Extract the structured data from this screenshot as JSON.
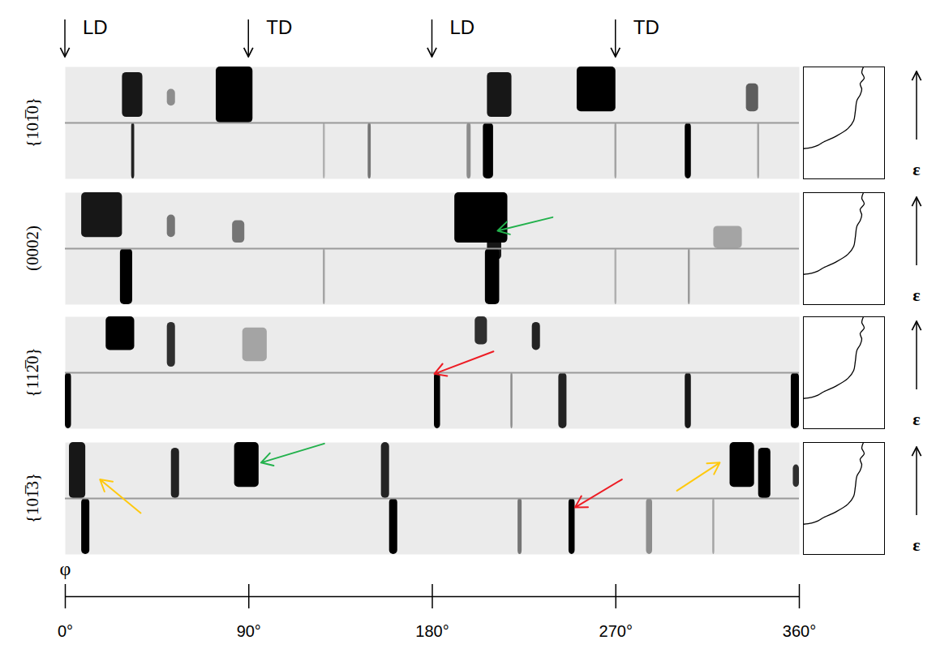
{
  "chart_data": {
    "type": "diffraction_panels",
    "x_label": "φ",
    "xlim": [
      0,
      360
    ],
    "xticks": [
      {
        "value": 0,
        "label": "0°"
      },
      {
        "value": 90,
        "label": "90°"
      },
      {
        "value": 180,
        "label": "180°"
      },
      {
        "value": 270,
        "label": "270°"
      },
      {
        "value": 360,
        "label": "360°"
      }
    ],
    "ylim": [
      0,
      1
    ],
    "split": 0.5,
    "directions": [
      {
        "value": 0,
        "label": "LD"
      },
      {
        "value": 90,
        "label": "TD"
      },
      {
        "value": 180,
        "label": "LD"
      },
      {
        "value": 270,
        "label": "TD"
      }
    ],
    "strain_label": "ε",
    "curve": {
      "xlim": [
        0,
        1
      ],
      "ylim": [
        0,
        1
      ],
      "x": [
        0.0,
        0.1,
        0.18,
        0.25,
        0.4,
        0.55,
        0.62,
        0.64,
        0.66,
        0.7,
        0.72,
        0.7,
        0.75,
        0.72,
        0.74
      ],
      "y": [
        0.27,
        0.28,
        0.3,
        0.33,
        0.38,
        0.45,
        0.52,
        0.6,
        0.7,
        0.75,
        0.8,
        0.85,
        0.9,
        0.95,
        1.0
      ]
    },
    "panels": [
      {
        "label": "{101̅0}",
        "features": [
          [
            32.5,
            34,
            0,
            0.5,
            0.85
          ],
          [
            126.5,
            127.5,
            0,
            0.5,
            0.25
          ],
          [
            148.5,
            150,
            0,
            0.5,
            0.5
          ],
          [
            197,
            199,
            0,
            0.5,
            0.4
          ],
          [
            205,
            210,
            0,
            0.5,
            1
          ],
          [
            269.5,
            270.5,
            0,
            0.5,
            0.3
          ],
          [
            304,
            307,
            0,
            0.5,
            1
          ],
          [
            339.5,
            340.5,
            0,
            0.5,
            0.3
          ],
          [
            28,
            38,
            0.55,
            0.95,
            0.9
          ],
          [
            74,
            92,
            0.5,
            1,
            1
          ],
          [
            207,
            219,
            0.55,
            0.95,
            0.9
          ],
          [
            251,
            270,
            0.6,
            1,
            1
          ],
          [
            334,
            340,
            0.6,
            0.85,
            0.6
          ],
          [
            50,
            54,
            0.65,
            0.8,
            0.4
          ]
        ],
        "arrows": []
      },
      {
        "label": "(0002)",
        "features": [
          [
            27,
            33,
            0,
            0.5,
            1
          ],
          [
            126.5,
            127.5,
            0,
            0.5,
            0.3
          ],
          [
            206,
            213,
            0,
            0.5,
            1
          ],
          [
            269.5,
            270.5,
            0,
            0.5,
            0.25
          ],
          [
            305.5,
            306.5,
            0,
            0.5,
            0.35
          ],
          [
            8,
            28,
            0.6,
            1,
            0.9
          ],
          [
            191,
            217,
            0.55,
            1,
            1
          ],
          [
            207,
            214,
            0.4,
            0.6,
            0.9
          ],
          [
            82,
            88,
            0.55,
            0.75,
            0.5
          ],
          [
            50,
            54,
            0.6,
            0.8,
            0.5
          ],
          [
            318,
            332,
            0.5,
            0.7,
            0.3
          ]
        ],
        "arrows": [
          {
            "color": "#22b14c",
            "from": [
              239,
              0.78
            ],
            "to": [
              212,
              0.66
            ]
          }
        ]
      },
      {
        "label": "{112̅0}",
        "features": [
          [
            0,
            3,
            0,
            0.5,
            1
          ],
          [
            181,
            184,
            0,
            0.5,
            1
          ],
          [
            218.5,
            219.5,
            0,
            0.5,
            0.4
          ],
          [
            242,
            246,
            0,
            0.5,
            0.85
          ],
          [
            304,
            307,
            0,
            0.5,
            0.9
          ],
          [
            356,
            360,
            0,
            0.5,
            1
          ],
          [
            20,
            34,
            0.7,
            1,
            1
          ],
          [
            50,
            54,
            0.55,
            0.95,
            0.8
          ],
          [
            201,
            207,
            0.75,
            1,
            0.8
          ],
          [
            229,
            233,
            0.7,
            0.95,
            0.85
          ],
          [
            87,
            99,
            0.6,
            0.9,
            0.3
          ]
        ],
        "arrows": [
          {
            "color": "#ed1c24",
            "from": [
              210,
              0.69
            ],
            "to": [
              181,
              0.49
            ]
          }
        ]
      },
      {
        "label": "{101̅3}",
        "features": [
          [
            8,
            12,
            0,
            0.5,
            1
          ],
          [
            159,
            163,
            0,
            0.5,
            1
          ],
          [
            222,
            224,
            0,
            0.5,
            0.5
          ],
          [
            247,
            250,
            0,
            0.5,
            1
          ],
          [
            285,
            288,
            0,
            0.5,
            0.4
          ],
          [
            317.5,
            318.5,
            0,
            0.5,
            0.3
          ],
          [
            2,
            10,
            0.5,
            1,
            0.9
          ],
          [
            52,
            56,
            0.5,
            0.95,
            0.85
          ],
          [
            83,
            95,
            0.6,
            1,
            1
          ],
          [
            155,
            159,
            0.5,
            1,
            0.85
          ],
          [
            326,
            338,
            0.6,
            1,
            1
          ],
          [
            340,
            346,
            0.5,
            0.95,
            1
          ],
          [
            357,
            360,
            0.6,
            0.8,
            0.8
          ]
        ],
        "arrows": [
          {
            "color": "#22b14c",
            "from": [
              127,
              0.99
            ],
            "to": [
              96,
              0.82
            ]
          },
          {
            "color": "#ed1c24",
            "from": [
              273,
              0.67
            ],
            "to": [
              250,
              0.42
            ]
          },
          {
            "color": "#ffc90e",
            "from": [
              37,
              0.37
            ],
            "to": [
              17,
              0.67
            ]
          },
          {
            "color": "#ffc90e",
            "from": [
              300,
              0.57
            ],
            "to": [
              321,
              0.82
            ]
          }
        ]
      }
    ]
  }
}
